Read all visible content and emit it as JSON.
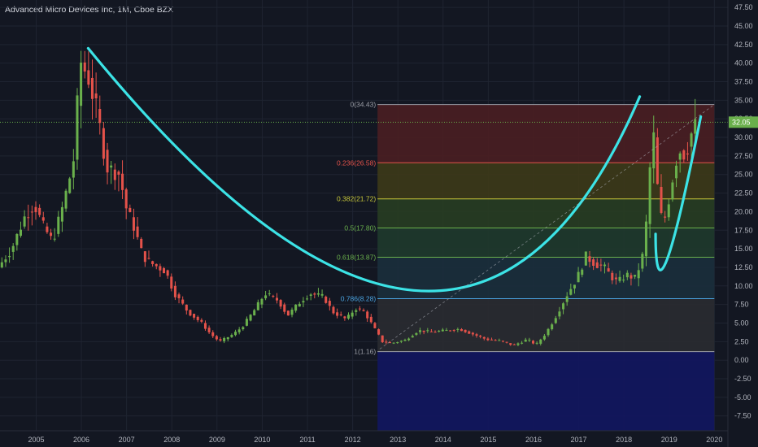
{
  "header": {
    "title": "Advanced Micro Devices Inc, 1M, Cboe BZX"
  },
  "colors": {
    "background": "#131722",
    "grid": "#1f2431",
    "up": "#6ab04c",
    "down": "#e4524a",
    "curve": "#3ce3e6",
    "axis_text": "#b2b5be",
    "last_price": "#6ab04c"
  },
  "chart_data": {
    "type": "candlestick",
    "title": "Advanced Micro Devices Inc, 1M, Cboe BZX",
    "xlabel": "",
    "ylabel": "",
    "ylim": [
      -9.5,
      48.5
    ],
    "xlim": [
      2004.2,
      2020.3
    ],
    "y_ticks": [
      "47.50",
      "45.00",
      "42.50",
      "40.00",
      "37.50",
      "35.00",
      "32.50",
      "30.00",
      "27.50",
      "25.00",
      "22.50",
      "20.00",
      "17.50",
      "15.00",
      "12.50",
      "10.00",
      "7.50",
      "5.00",
      "2.50",
      "0.00",
      "-2.50",
      "-5.00",
      "-7.50"
    ],
    "x_ticks": [
      "2005",
      "2006",
      "2007",
      "2008",
      "2009",
      "2010",
      "2011",
      "2012",
      "2013",
      "2014",
      "2015",
      "2016",
      "2017",
      "2018",
      "2019",
      "2020"
    ],
    "last_price": "32.05",
    "fibonacci": {
      "x_start": 2012.55,
      "x_end": 2020.0,
      "levels": [
        {
          "label": "0(34.43)",
          "value": 34.43,
          "color": "#9b9ea6",
          "fill": "#4a1e22"
        },
        {
          "label": "0.236(26.58)",
          "value": 26.58,
          "color": "#e4524a",
          "fill": "#3d3a18"
        },
        {
          "label": "0.382(21.72)",
          "value": 21.72,
          "color": "#c9c93a",
          "fill": "#283d22"
        },
        {
          "label": "0.5(17.80)",
          "value": 17.8,
          "color": "#6ab04c",
          "fill": "#1f3a2c"
        },
        {
          "label": "0.618(13.87)",
          "value": 13.87,
          "color": "#6ab04c",
          "fill": "#1b2f3c"
        },
        {
          "label": "0.786(8.28)",
          "value": 8.28,
          "color": "#4aa3e0",
          "fill": "#2a2b31"
        },
        {
          "label": "1(1.16)",
          "value": 1.16,
          "color": "#9b9ea6",
          "fill": "#121660"
        }
      ]
    },
    "price_path": [
      [
        2004.2,
        12.5
      ],
      [
        2004.5,
        15.0
      ],
      [
        2004.8,
        19.5
      ],
      [
        2005.0,
        21.0
      ],
      [
        2005.2,
        18.0
      ],
      [
        2005.4,
        16.0
      ],
      [
        2005.6,
        20.0
      ],
      [
        2005.8,
        25.0
      ],
      [
        2005.9,
        28.0
      ],
      [
        2006.0,
        40.5
      ],
      [
        2006.2,
        38.0
      ],
      [
        2006.4,
        33.0
      ],
      [
        2006.6,
        26.0
      ],
      [
        2006.9,
        25.0
      ],
      [
        2007.0,
        21.0
      ],
      [
        2007.2,
        18.0
      ],
      [
        2007.4,
        14.0
      ],
      [
        2007.6,
        13.0
      ],
      [
        2007.9,
        12.0
      ],
      [
        2008.1,
        9.0
      ],
      [
        2008.4,
        6.5
      ],
      [
        2008.7,
        5.0
      ],
      [
        2008.9,
        3.5
      ],
      [
        2009.1,
        2.5
      ],
      [
        2009.4,
        3.5
      ],
      [
        2009.6,
        4.5
      ],
      [
        2009.9,
        7.0
      ],
      [
        2010.1,
        9.0
      ],
      [
        2010.4,
        8.0
      ],
      [
        2010.6,
        6.0
      ],
      [
        2010.9,
        8.0
      ],
      [
        2011.1,
        9.0
      ],
      [
        2011.4,
        8.5
      ],
      [
        2011.6,
        6.5
      ],
      [
        2011.9,
        5.5
      ],
      [
        2012.1,
        7.0
      ],
      [
        2012.3,
        6.5
      ],
      [
        2012.5,
        4.5
      ],
      [
        2012.7,
        2.5
      ],
      [
        2012.9,
        2.3
      ],
      [
        2013.2,
        2.7
      ],
      [
        2013.5,
        4.0
      ],
      [
        2013.8,
        3.8
      ],
      [
        2014.1,
        4.0
      ],
      [
        2014.4,
        4.2
      ],
      [
        2014.7,
        3.5
      ],
      [
        2015.0,
        2.8
      ],
      [
        2015.3,
        2.6
      ],
      [
        2015.6,
        2.0
      ],
      [
        2015.9,
        2.8
      ],
      [
        2016.1,
        2.1
      ],
      [
        2016.3,
        3.5
      ],
      [
        2016.5,
        5.5
      ],
      [
        2016.8,
        9.0
      ],
      [
        2017.0,
        11.0
      ],
      [
        2017.2,
        14.0
      ],
      [
        2017.4,
        13.0
      ],
      [
        2017.6,
        12.5
      ],
      [
        2017.8,
        11.0
      ],
      [
        2017.9,
        10.5
      ],
      [
        2018.1,
        11.5
      ],
      [
        2018.3,
        11.0
      ],
      [
        2018.5,
        15.0
      ],
      [
        2018.6,
        25.0
      ],
      [
        2018.7,
        30.0
      ],
      [
        2018.8,
        22.0
      ],
      [
        2018.9,
        18.0
      ],
      [
        2019.0,
        20.5
      ],
      [
        2019.1,
        24.0
      ],
      [
        2019.2,
        27.0
      ],
      [
        2019.3,
        28.5
      ],
      [
        2019.4,
        27.5
      ],
      [
        2019.5,
        30.0
      ],
      [
        2019.6,
        31.5
      ]
    ],
    "annotations": {
      "big_curve": [
        [
          2006.15,
          42.0
        ],
        [
          2013.35,
          9.4
        ],
        [
          2018.35,
          35.5
        ]
      ],
      "right_curve": [
        [
          2018.7,
          17.0
        ],
        [
          2018.95,
          13.5
        ],
        [
          2019.7,
          32.8
        ]
      ],
      "diagonal": [
        [
          2012.6,
          1.5
        ],
        [
          2020.0,
          34.43
        ]
      ]
    }
  }
}
